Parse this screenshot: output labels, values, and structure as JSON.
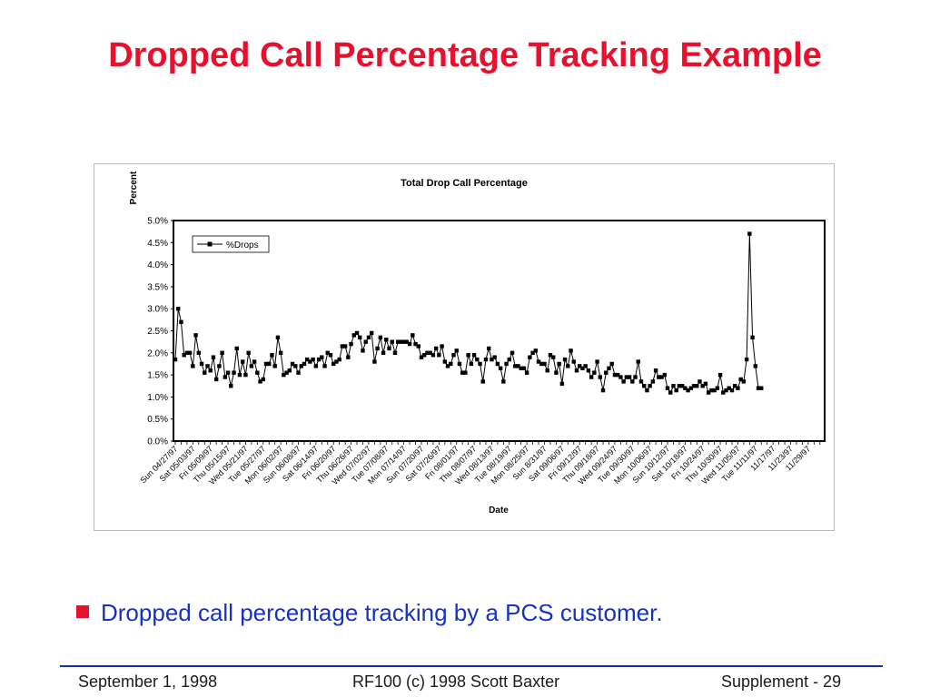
{
  "slide": {
    "title": "Dropped Call Percentage Tracking Example",
    "bullet": "Dropped call percentage tracking by a PCS customer.",
    "footer_left": "September 1, 1998",
    "footer_center": "RF100 (c) 1998 Scott Baxter",
    "footer_right": "Supplement - 29"
  },
  "colors": {
    "title": "#e8112d",
    "bullet_text": "#1532c6",
    "bullet_marker": "#e8112d",
    "footer_rule": "#1a2fb0",
    "series": "#000000"
  },
  "chart_data": {
    "type": "line",
    "title": "Total  Drop Call Percentage",
    "xlabel": "Date",
    "ylabel": "Percent",
    "ylim": [
      0,
      5
    ],
    "y_ticks": [
      "0.0%",
      "0.5%",
      "1.0%",
      "1.5%",
      "2.0%",
      "2.5%",
      "3.0%",
      "3.5%",
      "4.0%",
      "4.5%",
      "5.0%"
    ],
    "x_tick_labels": [
      "Sun 04/27/97",
      "Sat 05/03/97",
      "Fri 05/09/97",
      "Thu 05/15/97",
      "Wed 05/21/97",
      "Tue 05/27/97",
      "Mon 06/02/97",
      "Sun 06/08/97",
      "Sat 06/14/97",
      "Fri 06/20/97",
      "Thu 06/26/97",
      "Wed 07/02/97",
      "Tue 07/08/97",
      "Mon 07/14/97",
      "Sun 07/20/97",
      "Sat 07/26/97",
      "Fri 08/01/97",
      "Thu 08/07/97",
      "Wed 08/13/97",
      "Tue 08/19/97",
      "Mon 08/25/97",
      "Sun 8/31/97",
      "Sat 09/06/97",
      "Fri 09/12/97",
      "Thu 09/18/97",
      "Wed 09/24/97",
      "Tue 09/30/97",
      "Mon 10/06/97",
      "Sun 10/12/97",
      "Sat 10/18/97",
      "Fri 10/24/97",
      "Thu 10/30/97",
      "Wed 11/05/97",
      "Tue 11/11/97",
      "11/17/97",
      "11/23/97",
      "11/29/97"
    ],
    "x_range": [
      "1997-04-27",
      "1997-12-04"
    ],
    "grid": false,
    "legend": "top-left",
    "series": [
      {
        "name": "%Drops",
        "start_date": "1997-04-27",
        "values": [
          1.85,
          3.0,
          2.7,
          1.95,
          2.0,
          2.0,
          1.7,
          2.4,
          2.0,
          1.75,
          1.55,
          1.7,
          1.6,
          1.9,
          1.4,
          1.7,
          2.0,
          1.45,
          1.55,
          1.25,
          1.55,
          2.1,
          1.5,
          1.8,
          1.5,
          2.0,
          1.7,
          1.8,
          1.55,
          1.35,
          1.4,
          1.75,
          1.75,
          1.95,
          1.7,
          2.35,
          2.0,
          1.5,
          1.55,
          1.6,
          1.75,
          1.7,
          1.55,
          1.7,
          1.75,
          1.85,
          1.8,
          1.85,
          1.7,
          1.85,
          1.9,
          1.7,
          2.0,
          1.95,
          1.75,
          1.8,
          1.85,
          2.15,
          2.15,
          1.9,
          2.2,
          2.4,
          2.45,
          2.35,
          2.05,
          2.25,
          2.35,
          2.45,
          1.8,
          2.1,
          2.35,
          2.0,
          2.3,
          2.1,
          2.25,
          2.0,
          2.25,
          2.25,
          2.25,
          2.25,
          2.2,
          2.4,
          2.2,
          2.15,
          1.9,
          1.95,
          2.0,
          2.0,
          1.95,
          2.1,
          1.95,
          2.15,
          1.8,
          1.7,
          1.75,
          1.95,
          2.05,
          1.75,
          1.55,
          1.55,
          1.95,
          1.75,
          1.95,
          1.85,
          1.75,
          1.35,
          1.85,
          2.1,
          1.85,
          1.9,
          1.75,
          1.65,
          1.35,
          1.75,
          1.85,
          2.0,
          1.7,
          1.7,
          1.65,
          1.65,
          1.55,
          1.9,
          2.0,
          2.05,
          1.8,
          1.75,
          1.75,
          1.6,
          1.95,
          1.9,
          1.55,
          1.75,
          1.3,
          1.85,
          1.7,
          2.05,
          1.8,
          1.6,
          1.7,
          1.65,
          1.7,
          1.6,
          1.45,
          1.55,
          1.8,
          1.45,
          1.15,
          1.55,
          1.65,
          1.75,
          1.5,
          1.5,
          1.45,
          1.35,
          1.45,
          1.45,
          1.35,
          1.45,
          1.8,
          1.35,
          1.25,
          1.15,
          1.25,
          1.35,
          1.6,
          1.45,
          1.45,
          1.5,
          1.2,
          1.1,
          1.25,
          1.15,
          1.25,
          1.25,
          1.2,
          1.15,
          1.2,
          1.25,
          1.25,
          1.35,
          1.25,
          1.3,
          1.1,
          1.15,
          1.15,
          1.2,
          1.5,
          1.1,
          1.15,
          1.2,
          1.15,
          1.25,
          1.2,
          1.4,
          1.35,
          1.85,
          4.7,
          2.35,
          1.7,
          1.2,
          1.2
        ]
      }
    ]
  }
}
